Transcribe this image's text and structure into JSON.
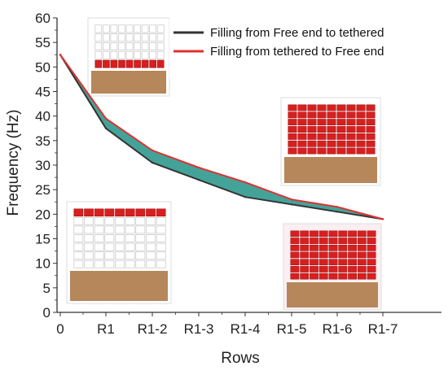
{
  "chart_data": {
    "type": "area",
    "xlabel": "Rows",
    "ylabel": "Frequency (Hz)",
    "ylim": [
      0,
      60
    ],
    "yticks": [
      0,
      5,
      10,
      15,
      20,
      25,
      30,
      35,
      40,
      45,
      50,
      55,
      60
    ],
    "categories": [
      "0",
      "R1",
      "R1-2",
      "R1-3",
      "R1-4",
      "R1-5",
      "R1-6",
      "R1-7"
    ],
    "grid": false,
    "legend_position": "top-right",
    "fill_color": "#3a9e93",
    "series": [
      {
        "name": "Filling from Free end to tethered",
        "color": "#333333",
        "values": [
          52.5,
          37.5,
          30.5,
          27.0,
          23.5,
          22.0,
          20.5,
          19.0
        ]
      },
      {
        "name": "Filling from tethered to Free end",
        "color": "#e03030",
        "values": [
          52.5,
          39.5,
          33.0,
          29.5,
          26.5,
          23.0,
          21.5,
          19.0
        ]
      }
    ],
    "insets": [
      {
        "filled_rows": 1,
        "filled_from": "bottom",
        "position": "top-left"
      },
      {
        "filled_rows": 7,
        "filled_from": "top",
        "position": "right-upper"
      },
      {
        "filled_rows": 1,
        "filled_from": "top",
        "position": "bottom-left"
      },
      {
        "filled_rows": 7,
        "filled_from": "bottom",
        "position": "bottom-right"
      }
    ]
  }
}
